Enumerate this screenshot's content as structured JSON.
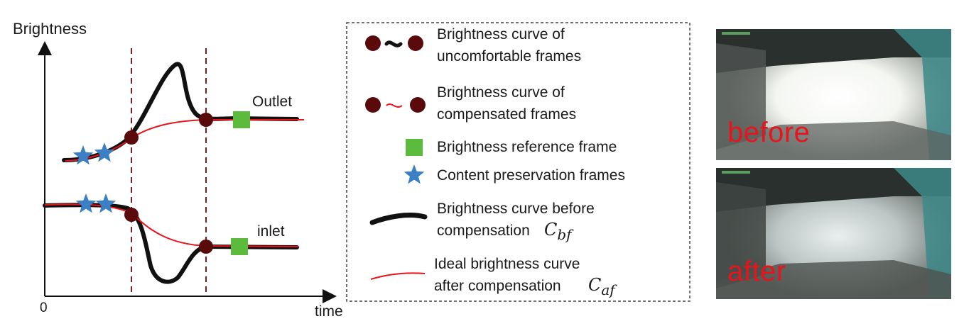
{
  "plot": {
    "y_axis_label": "Brightness",
    "x_axis_label": "time",
    "origin_label": "0",
    "outlet_label": "Outlet",
    "inlet_label": "inlet"
  },
  "legend": {
    "items": [
      {
        "line1": "Brightness curve of",
        "line2": "uncomfortable frames"
      },
      {
        "line1": "Brightness curve of",
        "line2": "compensated frames"
      },
      {
        "line1": "Brightness reference frame",
        "line2": ""
      },
      {
        "line1": "Content preservation frames",
        "line2": ""
      },
      {
        "line1": "Brightness curve before",
        "line2": "compensation",
        "symbol": "C",
        "subscript": "bf"
      },
      {
        "line1": "Ideal brightness curve",
        "line2": "after compensation",
        "symbol": "C",
        "subscript": "af"
      }
    ]
  },
  "photos": {
    "before_label": "before",
    "after_label": "after"
  },
  "colors": {
    "dark_curve": "#111111",
    "ideal_curve": "#e8141b",
    "marker_circle": "#5a0a0a",
    "reference_square": "#5cbb3c",
    "star": "#3b7fc4",
    "dashed_line": "#7a1f1f"
  }
}
